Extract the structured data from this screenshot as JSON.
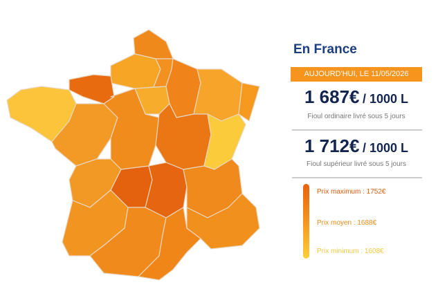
{
  "panel": {
    "title": "En France",
    "date_badge": "AUJOURD'HUI, LE 11/05/2026",
    "prices": [
      {
        "amount": "1 687€",
        "unit": "/ 1000 L",
        "description": "Fioul ordinaire livré sous 5 jours"
      },
      {
        "amount": "1 712€",
        "unit": "/ 1000 L",
        "description": "Fioul supérieur livré sous 5 jours"
      }
    ],
    "legend": [
      "Prix maximum : 1752€",
      "Prix moyen : 1688€",
      "Prix minimum : 1608€"
    ]
  }
}
